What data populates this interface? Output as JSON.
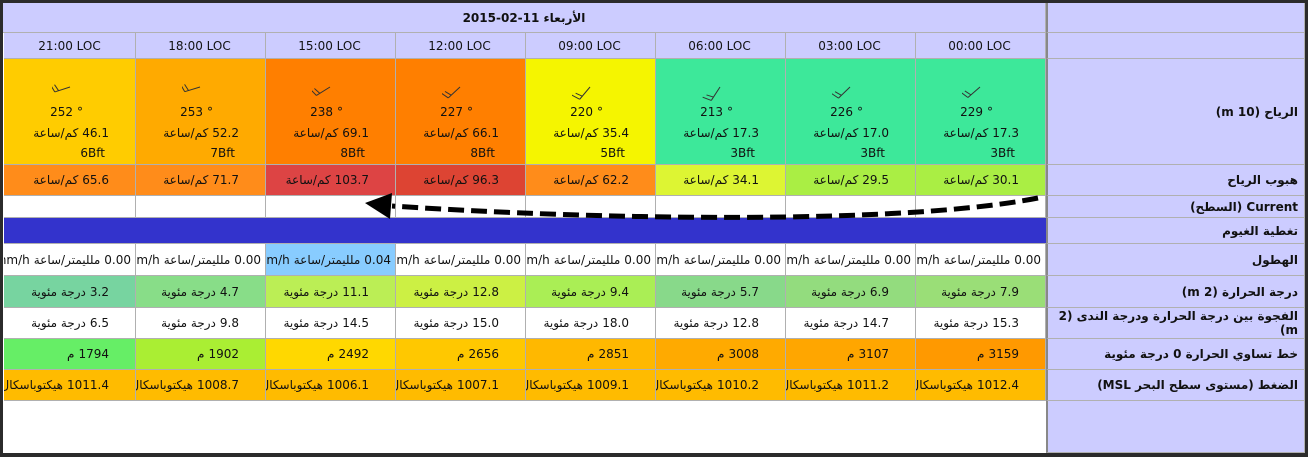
{
  "header": {
    "date": "الأربعاء 11-02-2015"
  },
  "labels": {
    "wind": "الرياح (10 m)",
    "gust": "هبوب الرياح",
    "current": "Current (السطح)",
    "cloud": "تغطية الغيوم",
    "precipitation": "الهطول",
    "temperature": "درجة الحرارة (2 m)",
    "dew_spread": "الفجوة بين درجة الحرارة ودرجة الندى (2 m)",
    "freezing_level": "خط تساوي الحرارة 0 درجة مئوية",
    "pressure": "الضغط (مستوى سطح البحر MSL)"
  },
  "units": {
    "degree": "°",
    "speed": "كم/ساعة",
    "precipitation": "ملليمتر/ساعة",
    "precipitation_en": "mm/h",
    "temperature": "درجة مئوية",
    "height": "م",
    "pressure": "هيكتوباسكال"
  },
  "columns": [
    {
      "time": "00:00 LOC",
      "direction": 229,
      "speed": "17.3",
      "beaufort": "3Bft",
      "wind_color": "#3de89a",
      "gust": "30.1",
      "gust_color": "#aaee44",
      "precipitation": "0.00",
      "precipitation_color": "#ffffff",
      "temperature": "7.9",
      "temperature_color": "#9ade77",
      "dew_spread": "15.3",
      "freezing_level": "3159",
      "freezing_color": "#ff9900",
      "pressure": "1012.4"
    },
    {
      "time": "03:00 LOC",
      "direction": 226,
      "speed": "17.0",
      "beaufort": "3Bft",
      "wind_color": "#3de89a",
      "gust": "29.5",
      "gust_color": "#aaee44",
      "precipitation": "0.00",
      "precipitation_color": "#ffffff",
      "temperature": "6.9",
      "temperature_color": "#93dc7e",
      "dew_spread": "14.7",
      "freezing_level": "3107",
      "freezing_color": "#ffa600",
      "pressure": "1011.2"
    },
    {
      "time": "06:00 LOC",
      "direction": 213,
      "speed": "17.3",
      "beaufort": "3Bft",
      "wind_color": "#3de89a",
      "gust": "34.1",
      "gust_color": "#ddf533",
      "precipitation": "0.00",
      "precipitation_color": "#ffffff",
      "temperature": "5.7",
      "temperature_color": "#88d98a",
      "dew_spread": "12.8",
      "freezing_level": "3008",
      "freezing_color": "#ffaa00",
      "pressure": "1010.2"
    },
    {
      "time": "09:00 LOC",
      "direction": 220,
      "speed": "35.4",
      "beaufort": "5Bft",
      "wind_color": "#f5f500",
      "gust": "62.2",
      "gust_color": "#ff8c1a",
      "precipitation": "0.00",
      "precipitation_color": "#ffffff",
      "temperature": "9.4",
      "temperature_color": "#aaee55",
      "dew_spread": "18.0",
      "freezing_level": "2851",
      "freezing_color": "#ffb800",
      "pressure": "1009.1"
    },
    {
      "time": "12:00 LOC",
      "direction": 227,
      "speed": "66.1",
      "beaufort": "8Bft",
      "wind_color": "#ff7f00",
      "gust": "96.3",
      "gust_color": "#dd4433",
      "precipitation": "0.00",
      "precipitation_color": "#ffffff",
      "temperature": "12.8",
      "temperature_color": "#ccf044",
      "dew_spread": "15.0",
      "freezing_level": "2656",
      "freezing_color": "#ffc800",
      "pressure": "1007.1"
    },
    {
      "time": "15:00 LOC",
      "direction": 238,
      "speed": "69.1",
      "beaufort": "8Bft",
      "wind_color": "#ff7f00",
      "gust": "103.7",
      "gust_color": "#dd4444",
      "precipitation": "0.04",
      "precipitation_color": "#88ccff",
      "temperature": "11.1",
      "temperature_color": "#bbee55",
      "dew_spread": "14.5",
      "freezing_level": "2492",
      "freezing_color": "#ffd800",
      "pressure": "1006.1"
    },
    {
      "time": "18:00 LOC",
      "direction": 253,
      "speed": "52.2",
      "beaufort": "7Bft",
      "wind_color": "#ffaa00",
      "gust": "71.7",
      "gust_color": "#ff8c1a",
      "precipitation": "0.00",
      "precipitation_color": "#ffffff",
      "temperature": "4.7",
      "temperature_color": "#88dd88",
      "dew_spread": "9.8",
      "freezing_level": "1902",
      "freezing_color": "#aaee33",
      "pressure": "1008.7"
    },
    {
      "time": "21:00 LOC",
      "direction": 252,
      "speed": "46.1",
      "beaufort": "6Bft",
      "wind_color": "#ffcc00",
      "gust": "65.6",
      "gust_color": "#ff8c1a",
      "precipitation": "0.00",
      "precipitation_color": "#ffffff",
      "temperature": "3.2",
      "temperature_color": "#77d4a0",
      "dew_spread": "6.5",
      "freezing_level": "1794",
      "freezing_color": "#66ee66",
      "pressure": "1011.4"
    }
  ],
  "colors": {
    "cloud": "#3333cc",
    "dew_spread": "#ffffff",
    "pressure": "#ffbb00",
    "current": "#ffffff"
  }
}
